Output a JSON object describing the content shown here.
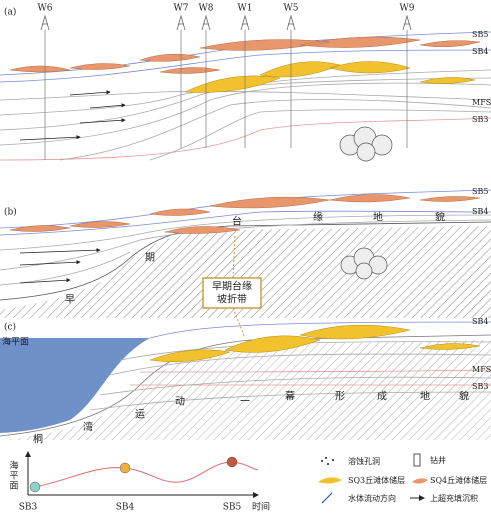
{
  "panels": [
    {
      "label": "(a)",
      "wells": [
        "W6",
        "W7",
        "W8",
        "W1",
        "W5",
        "W9"
      ],
      "horizons": [
        "SB5",
        "SB4",
        "MFS",
        "SB3"
      ]
    },
    {
      "label": "(b)",
      "horizons": [
        "SB5",
        "SB4"
      ],
      "landform_text": [
        "早",
        "期",
        "台",
        "缘",
        "地",
        "貌"
      ]
    },
    {
      "label": "(c)",
      "sea_level": "海平面",
      "horizons": [
        "SB4",
        "MFS",
        "SB3"
      ],
      "landform_text": [
        "桐",
        "湾",
        "运",
        "动",
        "一",
        "幕",
        "形",
        "成",
        "地",
        "貌"
      ]
    }
  ],
  "callout": [
    "早期台缘",
    "坡折带"
  ],
  "sea_level_curve": {
    "axis_label": "海平面",
    "x_labels": [
      "SB3",
      "SB4",
      "SB5"
    ],
    "x_axis": "时间"
  },
  "legend": [
    "溶蚀孔洞",
    "钻井",
    "SQ3丘滩体储层",
    "SQ4丘滩体储层",
    "水体流动方向",
    "上超充填沉积"
  ]
}
